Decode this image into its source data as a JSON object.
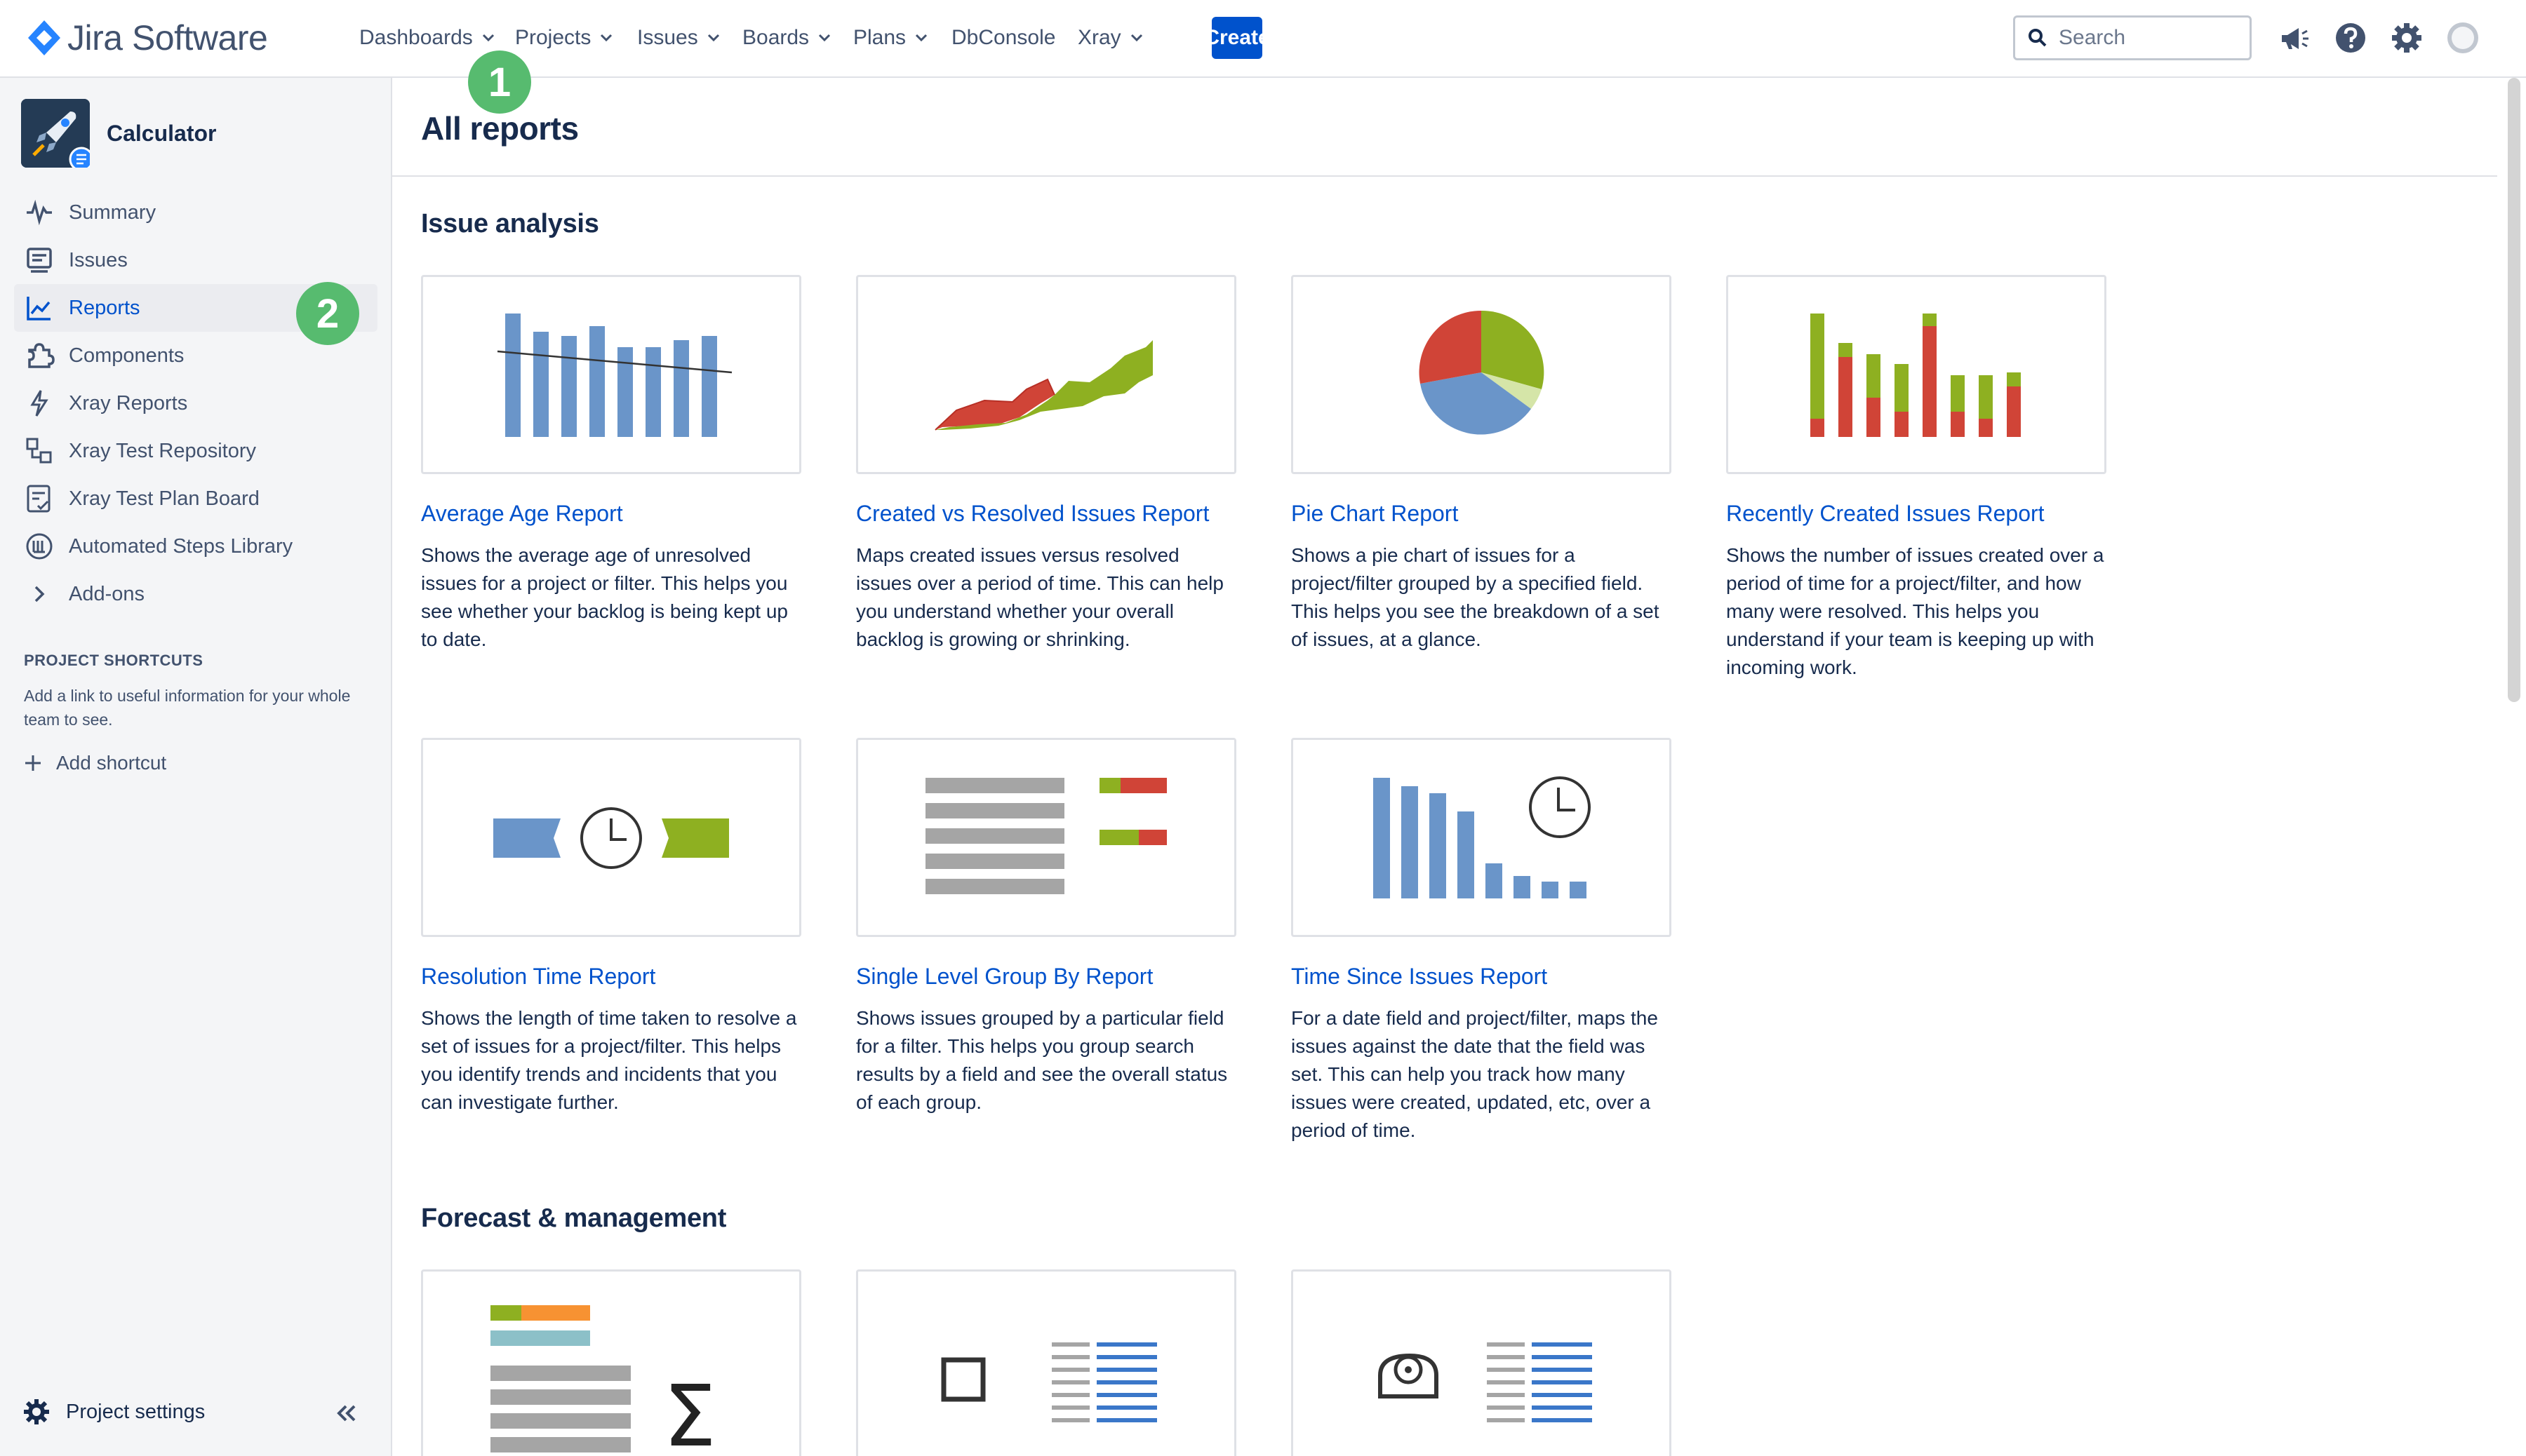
{
  "app": {
    "brand": "Jira Software"
  },
  "nav": {
    "dashboards": "Dashboards",
    "projects": "Projects",
    "issues": "Issues",
    "boards": "Boards",
    "plans": "Plans",
    "dbconsole": "DbConsole",
    "xray": "Xray",
    "create": "Create",
    "search_placeholder": "Search"
  },
  "badges": {
    "one": "1",
    "two": "2"
  },
  "sidebar": {
    "project_name": "Calculator",
    "items": [
      {
        "label": "Summary",
        "icon": "pulse-icon"
      },
      {
        "label": "Issues",
        "icon": "issues-icon"
      },
      {
        "label": "Reports",
        "icon": "chart-icon"
      },
      {
        "label": "Components",
        "icon": "puzzle-icon"
      },
      {
        "label": "Xray Reports",
        "icon": "bolt-icon"
      },
      {
        "label": "Xray Test Repository",
        "icon": "repository-icon"
      },
      {
        "label": "Xray Test Plan Board",
        "icon": "board-icon"
      },
      {
        "label": "Automated Steps Library",
        "icon": "library-icon"
      },
      {
        "label": "Add-ons",
        "icon": "chevron-right-icon"
      }
    ],
    "shortcuts_title": "PROJECT SHORTCUTS",
    "shortcuts_text": "Add a link to useful information for your whole team to see.",
    "add_shortcut": "Add shortcut",
    "project_settings": "Project settings"
  },
  "main": {
    "title": "All reports",
    "sections": [
      {
        "title": "Issue analysis",
        "cards": [
          {
            "title": "Average Age Report",
            "desc": "Shows the average age of unresolved issues for a project or filter. This helps you see whether your backlog is being kept up to date."
          },
          {
            "title": "Created vs Resolved Issues Report",
            "desc": "Maps created issues versus resolved issues over a period of time. This can help you understand whether your overall backlog is growing or shrinking."
          },
          {
            "title": "Pie Chart Report",
            "desc": "Shows a pie chart of issues for a project/filter grouped by a specified field. This helps you see the breakdown of a set of issues, at a glance."
          },
          {
            "title": "Recently Created Issues Report",
            "desc": "Shows the number of issues created over a period of time for a project/filter, and how many were resolved. This helps you understand if your team is keeping up with incoming work."
          },
          {
            "title": "Resolution Time Report",
            "desc": "Shows the length of time taken to resolve a set of issues for a project/filter. This helps you identify trends and incidents that you can investigate further."
          },
          {
            "title": "Single Level Group By Report",
            "desc": "Shows issues grouped by a particular field for a filter. This helps you group search results by a field and see the overall status of each group."
          },
          {
            "title": "Time Since Issues Report",
            "desc": "For a date field and project/filter, maps the issues against the date that the field was set. This can help you track how many issues were created, updated, etc, over a period of time."
          }
        ]
      },
      {
        "title": "Forecast & management",
        "cards": []
      }
    ]
  },
  "colors": {
    "accent": "#0052CC",
    "green": "#8EB021",
    "red": "#D04437",
    "blue": "#6A95C9",
    "badge": "#57BB6F"
  }
}
